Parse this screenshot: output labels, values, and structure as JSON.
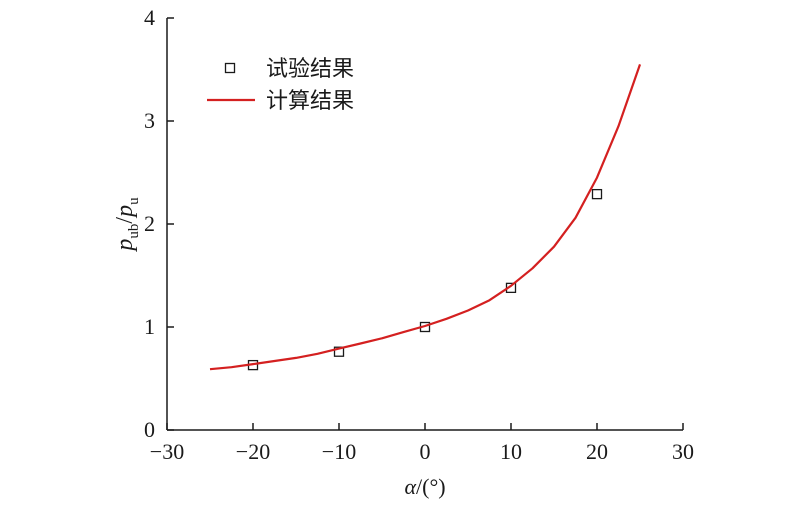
{
  "chart_data": {
    "type": "scatter",
    "title": "",
    "xlim": [
      -30,
      30
    ],
    "ylim": [
      0,
      4
    ],
    "x_ticks": [
      -30,
      -20,
      -10,
      0,
      10,
      20,
      30
    ],
    "y_ticks": [
      0,
      1,
      2,
      3,
      4
    ],
    "x_tick_labels": [
      "−30",
      "−20",
      "−10",
      "0",
      "10",
      "20",
      "30"
    ],
    "y_tick_labels": [
      "0",
      "1",
      "2",
      "3",
      "4"
    ],
    "xlabel": {
      "var": "α",
      "rest": "/(°)"
    },
    "ylabel": {
      "p1": "p",
      "sub1": "ub",
      "slash": "/",
      "p2": "p",
      "sub2": "u"
    },
    "grid": false,
    "legend_position": "top-left",
    "series": [
      {
        "name": "试验结果",
        "kind": "markers",
        "marker": "square-open",
        "color": "#1a1a1a",
        "x": [
          -20,
          -10,
          0,
          10,
          20
        ],
        "y": [
          0.63,
          0.76,
          1.0,
          1.38,
          2.29
        ]
      },
      {
        "name": "计算结果",
        "kind": "line",
        "color": "#d42020",
        "x": [
          -25,
          -22.5,
          -20,
          -17.5,
          -15,
          -12.5,
          -10,
          -7.5,
          -5,
          -2.5,
          0,
          2.5,
          5,
          7.5,
          10,
          12.5,
          15,
          17.5,
          20,
          22.5,
          25
        ],
        "y": [
          0.59,
          0.61,
          0.64,
          0.67,
          0.7,
          0.74,
          0.79,
          0.84,
          0.89,
          0.95,
          1.01,
          1.08,
          1.16,
          1.26,
          1.4,
          1.57,
          1.78,
          2.06,
          2.45,
          2.95,
          3.55
        ]
      }
    ]
  }
}
